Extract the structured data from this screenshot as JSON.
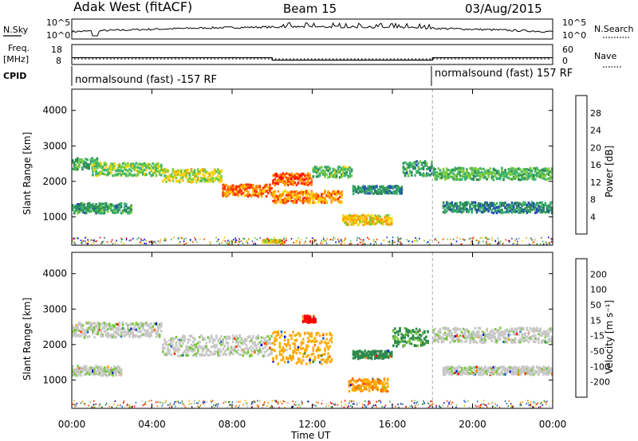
{
  "header": {
    "station": "Adak West (fitACF)",
    "beam": "Beam 15",
    "date": "03/Aug/2015"
  },
  "panels": {
    "nsky": {
      "label": "N.Sky",
      "ticks_left": [
        "10^5",
        "10^0"
      ],
      "ticks_right": [
        "10^5",
        "10^0"
      ],
      "right_label": "N.Search"
    },
    "freq": {
      "label_line1": "Freq.",
      "label_line2": "[MHz]",
      "ticks_left": [
        "18",
        "8"
      ],
      "ticks_right": [
        "60",
        "0"
      ],
      "right_label": "Nave",
      "level_segments": [
        {
          "start": 0,
          "end": 10,
          "value": 11.4
        },
        {
          "start": 10,
          "end": 18,
          "value": 10.2
        },
        {
          "start": 18,
          "end": 24,
          "value": 11.4
        }
      ]
    },
    "cpid": {
      "label": "CPID",
      "segments": [
        "normalsound (fast) -157 RF",
        "normalsound (fast) 157 RF"
      ],
      "switch_time": "18:00"
    }
  },
  "chart_data": [
    {
      "type": "heatmap",
      "name": "power",
      "ylabel": "Slant Range [km]",
      "ylim": [
        200,
        4600
      ],
      "yticks": [
        "4000",
        "3000",
        "2000",
        "1000"
      ],
      "colorbar": {
        "label": "Power [dB]",
        "ticks": [
          "28",
          "24",
          "20",
          "16",
          "12",
          "8",
          "4"
        ],
        "colors": [
          "#0000ff",
          "#264fb4",
          "#2e8b57",
          "#3cb371",
          "#7ccd3c",
          "#ffd200",
          "#ff9900",
          "#ff3300",
          "#ff0000"
        ]
      },
      "bands": [
        {
          "start": 0.0,
          "end": 1.3,
          "range": 2480,
          "width": 230,
          "level": 11
        },
        {
          "start": 1.0,
          "end": 4.5,
          "range": 2330,
          "width": 260,
          "level": 15
        },
        {
          "start": 4.5,
          "end": 7.5,
          "range": 2150,
          "width": 260,
          "level": 18
        },
        {
          "start": 7.5,
          "end": 10.0,
          "range": 1730,
          "width": 240,
          "level": 25
        },
        {
          "start": 10.0,
          "end": 12.0,
          "range": 2050,
          "width": 240,
          "level": 27
        },
        {
          "start": 10.0,
          "end": 13.5,
          "range": 1550,
          "width": 240,
          "level": 24
        },
        {
          "start": 12.0,
          "end": 14.0,
          "range": 2250,
          "width": 220,
          "level": 14
        },
        {
          "start": 14.0,
          "end": 16.5,
          "range": 1750,
          "width": 160,
          "level": 9
        },
        {
          "start": 13.5,
          "end": 16.0,
          "range": 900,
          "width": 200,
          "level": 21
        },
        {
          "start": 0.0,
          "end": 3.0,
          "range": 1230,
          "width": 200,
          "level": 10
        },
        {
          "start": 16.5,
          "end": 18.0,
          "range": 2350,
          "width": 300,
          "level": 10
        },
        {
          "start": 18.0,
          "end": 24.0,
          "range": 2200,
          "width": 240,
          "level": 13
        },
        {
          "start": 18.5,
          "end": 24.0,
          "range": 1250,
          "width": 220,
          "level": 8
        },
        {
          "start": 9.5,
          "end": 10.5,
          "range": 300,
          "width": 60,
          "level": 20
        }
      ]
    },
    {
      "type": "heatmap",
      "name": "velocity",
      "ylabel": "Slant Range [km]",
      "ylim": [
        200,
        4600
      ],
      "yticks": [
        "4000",
        "3000",
        "2000",
        "1000"
      ],
      "xlabel": "Time UT",
      "xticks": [
        "00:00",
        "04:00",
        "08:00",
        "12:00",
        "16:00",
        "20:00",
        "00:00"
      ],
      "colorbar": {
        "label": "Velocity [m s⁻¹]",
        "ticks": [
          "200",
          "100",
          "50",
          "15",
          "-15",
          "-50",
          "-100",
          "-200"
        ],
        "colors": [
          "#1414c8",
          "#1e64c8",
          "#2d8b4b",
          "#78c83c",
          "#c8c8c8",
          "#ffaa00",
          "#ff7700",
          "#ff3300",
          "#ff0000"
        ]
      },
      "bands": [
        {
          "start": 0.0,
          "end": 4.5,
          "range": 2400,
          "width": 300,
          "velocity": 0
        },
        {
          "start": 4.5,
          "end": 10.0,
          "range": 1950,
          "width": 420,
          "velocity": 0
        },
        {
          "start": 10.0,
          "end": 13.0,
          "range": 1900,
          "width": 650,
          "velocity": -60
        },
        {
          "start": 11.5,
          "end": 12.2,
          "range": 2700,
          "width": 140,
          "velocity": -180
        },
        {
          "start": 13.8,
          "end": 15.8,
          "range": 850,
          "width": 260,
          "velocity": -70
        },
        {
          "start": 14.0,
          "end": 16.0,
          "range": 1700,
          "width": 160,
          "velocity": 60
        },
        {
          "start": 16.0,
          "end": 17.8,
          "range": 2200,
          "width": 380,
          "velocity": 40
        },
        {
          "start": 0.0,
          "end": 2.5,
          "range": 1250,
          "width": 200,
          "velocity": 0
        },
        {
          "start": 18.0,
          "end": 24.0,
          "range": 2250,
          "width": 300,
          "velocity": 0
        },
        {
          "start": 18.5,
          "end": 24.0,
          "range": 1250,
          "width": 160,
          "velocity": 0
        }
      ]
    }
  ]
}
